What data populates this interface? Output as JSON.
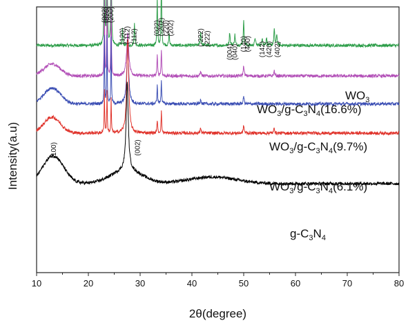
{
  "chart_data": {
    "type": "line",
    "title": "",
    "xlabel": "2θ(degree)",
    "ylabel": "Intensity(a.u)",
    "xlim": [
      10,
      80
    ],
    "x_ticks": [
      "10",
      "20",
      "30",
      "40",
      "50",
      "60",
      "70",
      "80"
    ],
    "y_ticks": [],
    "grid": false,
    "series": [
      {
        "name": "WO3",
        "label_parts": [
          {
            "t": "WO",
            "sub": false
          },
          {
            "t": "3",
            "sub": true
          }
        ],
        "color": "#2e9e4a",
        "baseline": 0.855,
        "hump": [],
        "peaks": [
          [
            23.1,
            0.65,
            0.12
          ],
          [
            23.6,
            0.65,
            0.12
          ],
          [
            24.4,
            0.65,
            0.12
          ],
          [
            26.6,
            0.06,
            0.15
          ],
          [
            28.9,
            0.09,
            0.15
          ],
          [
            33.3,
            0.18,
            0.15
          ],
          [
            34.1,
            0.24,
            0.15
          ],
          [
            35.6,
            0.05,
            0.15
          ],
          [
            41.7,
            0.05,
            0.2
          ],
          [
            47.3,
            0.05,
            0.2
          ],
          [
            48.3,
            0.04,
            0.2
          ],
          [
            50.0,
            0.09,
            0.2
          ],
          [
            52.2,
            0.03,
            0.2
          ],
          [
            53.6,
            0.03,
            0.2
          ],
          [
            54.4,
            0.03,
            0.2
          ],
          [
            55.9,
            0.06,
            0.2
          ],
          [
            56.4,
            0.04,
            0.2
          ]
        ]
      },
      {
        "name": "WO3/g-C3N4(16.6%)",
        "label_parts": [
          {
            "t": "WO",
            "sub": false
          },
          {
            "t": "3",
            "sub": true
          },
          {
            "t": "/g-C",
            "sub": false
          },
          {
            "t": "3",
            "sub": true
          },
          {
            "t": "N",
            "sub": false
          },
          {
            "t": "4",
            "sub": true
          },
          {
            "t": "(16.6%)",
            "sub": false
          }
        ],
        "color": "#b24fb7",
        "baseline": 0.74,
        "hump": [
          [
            13.0,
            0.045,
            1.6
          ]
        ],
        "peaks": [
          [
            23.1,
            0.3,
            0.12
          ],
          [
            23.6,
            0.3,
            0.12
          ],
          [
            24.4,
            0.3,
            0.12
          ],
          [
            27.6,
            0.16,
            0.5
          ],
          [
            33.3,
            0.08,
            0.15
          ],
          [
            34.1,
            0.1,
            0.15
          ],
          [
            41.7,
            0.02,
            0.2
          ],
          [
            50.0,
            0.04,
            0.2
          ],
          [
            55.9,
            0.02,
            0.2
          ]
        ]
      },
      {
        "name": "WO3/g-C3N4(9.7%)",
        "label_parts": [
          {
            "t": "WO",
            "sub": false
          },
          {
            "t": "3",
            "sub": true
          },
          {
            "t": "/g-C",
            "sub": false
          },
          {
            "t": "3",
            "sub": true
          },
          {
            "t": "N",
            "sub": false
          },
          {
            "t": "4",
            "sub": true
          },
          {
            "t": "(9.7%)",
            "sub": false
          }
        ],
        "color": "#3c4fb4",
        "baseline": 0.635,
        "hump": [
          [
            13.0,
            0.06,
            1.6
          ]
        ],
        "peaks": [
          [
            23.1,
            0.25,
            0.12
          ],
          [
            23.6,
            0.25,
            0.12
          ],
          [
            24.4,
            0.25,
            0.12
          ],
          [
            27.6,
            0.22,
            0.45
          ],
          [
            33.3,
            0.07,
            0.15
          ],
          [
            34.1,
            0.09,
            0.15
          ],
          [
            41.7,
            0.02,
            0.2
          ],
          [
            50.0,
            0.03,
            0.2
          ]
        ]
      },
      {
        "name": "WO3/g-C3N4(6.1%)",
        "label_parts": [
          {
            "t": "WO",
            "sub": false
          },
          {
            "t": "3",
            "sub": true
          },
          {
            "t": "/g-C",
            "sub": false
          },
          {
            "t": "3",
            "sub": true
          },
          {
            "t": "N",
            "sub": false
          },
          {
            "t": "4",
            "sub": true
          },
          {
            "t": "(6.1%)",
            "sub": false
          }
        ],
        "color": "#e0342c",
        "baseline": 0.525,
        "hump": [
          [
            13.0,
            0.06,
            1.6
          ]
        ],
        "peaks": [
          [
            23.1,
            0.16,
            0.12
          ],
          [
            23.6,
            0.16,
            0.12
          ],
          [
            24.4,
            0.13,
            0.12
          ],
          [
            27.6,
            0.36,
            0.45
          ],
          [
            33.3,
            0.05,
            0.15
          ],
          [
            34.1,
            0.08,
            0.15
          ],
          [
            41.7,
            0.02,
            0.2
          ],
          [
            50.0,
            0.03,
            0.2
          ],
          [
            55.9,
            0.02,
            0.2
          ]
        ]
      },
      {
        "name": "g-C3N4",
        "label_parts": [
          {
            "t": "g-C",
            "sub": false
          },
          {
            "t": "3",
            "sub": true
          },
          {
            "t": "N",
            "sub": false
          },
          {
            "t": "4",
            "sub": true
          }
        ],
        "color": "#000000",
        "baseline": 0.335,
        "hump": [
          [
            13.2,
            0.105,
            2.0
          ],
          [
            27.4,
            0.05,
            3.0
          ],
          [
            44.0,
            0.025,
            4.5
          ]
        ],
        "peaks": [
          [
            27.5,
            0.33,
            0.5
          ]
        ]
      }
    ],
    "annotations": [
      {
        "text": "(002)",
        "x": 23.1,
        "y": 0.94
      },
      {
        "text": "(020)",
        "x": 23.6,
        "y": 0.94
      },
      {
        "text": "(200)",
        "x": 24.4,
        "y": 0.94
      },
      {
        "text": "(120)",
        "x": 26.6,
        "y": 0.86
      },
      {
        "text": "(-112)",
        "x": 27.5,
        "y": 0.86
      },
      {
        "text": "(112)",
        "x": 28.9,
        "y": 0.86
      },
      {
        "text": "(022)",
        "x": 33.3,
        "y": 0.89
      },
      {
        "text": "(-202)",
        "x": 34.1,
        "y": 0.89
      },
      {
        "text": "(220)",
        "x": 35.0,
        "y": 0.89
      },
      {
        "text": "(202)",
        "x": 35.9,
        "y": 0.89
      },
      {
        "text": "(-222)",
        "x": 41.7,
        "y": 0.85
      },
      {
        "text": "(222)",
        "x": 43.0,
        "y": 0.85
      },
      {
        "text": "(004)",
        "x": 47.3,
        "y": 0.8
      },
      {
        "text": "(040)",
        "x": 48.3,
        "y": 0.8
      },
      {
        "text": "(140)",
        "x": 50.0,
        "y": 0.83
      },
      {
        "text": "(400)",
        "x": 50.8,
        "y": 0.83
      },
      {
        "text": "(142)",
        "x": 53.6,
        "y": 0.81
      },
      {
        "text": "(420)",
        "x": 54.9,
        "y": 0.81
      },
      {
        "text": "(402)",
        "x": 56.5,
        "y": 0.81
      },
      {
        "text": "(100)",
        "x": 13.3,
        "y": 0.43
      },
      {
        "text": "(002)",
        "x": 29.5,
        "y": 0.44
      }
    ]
  }
}
